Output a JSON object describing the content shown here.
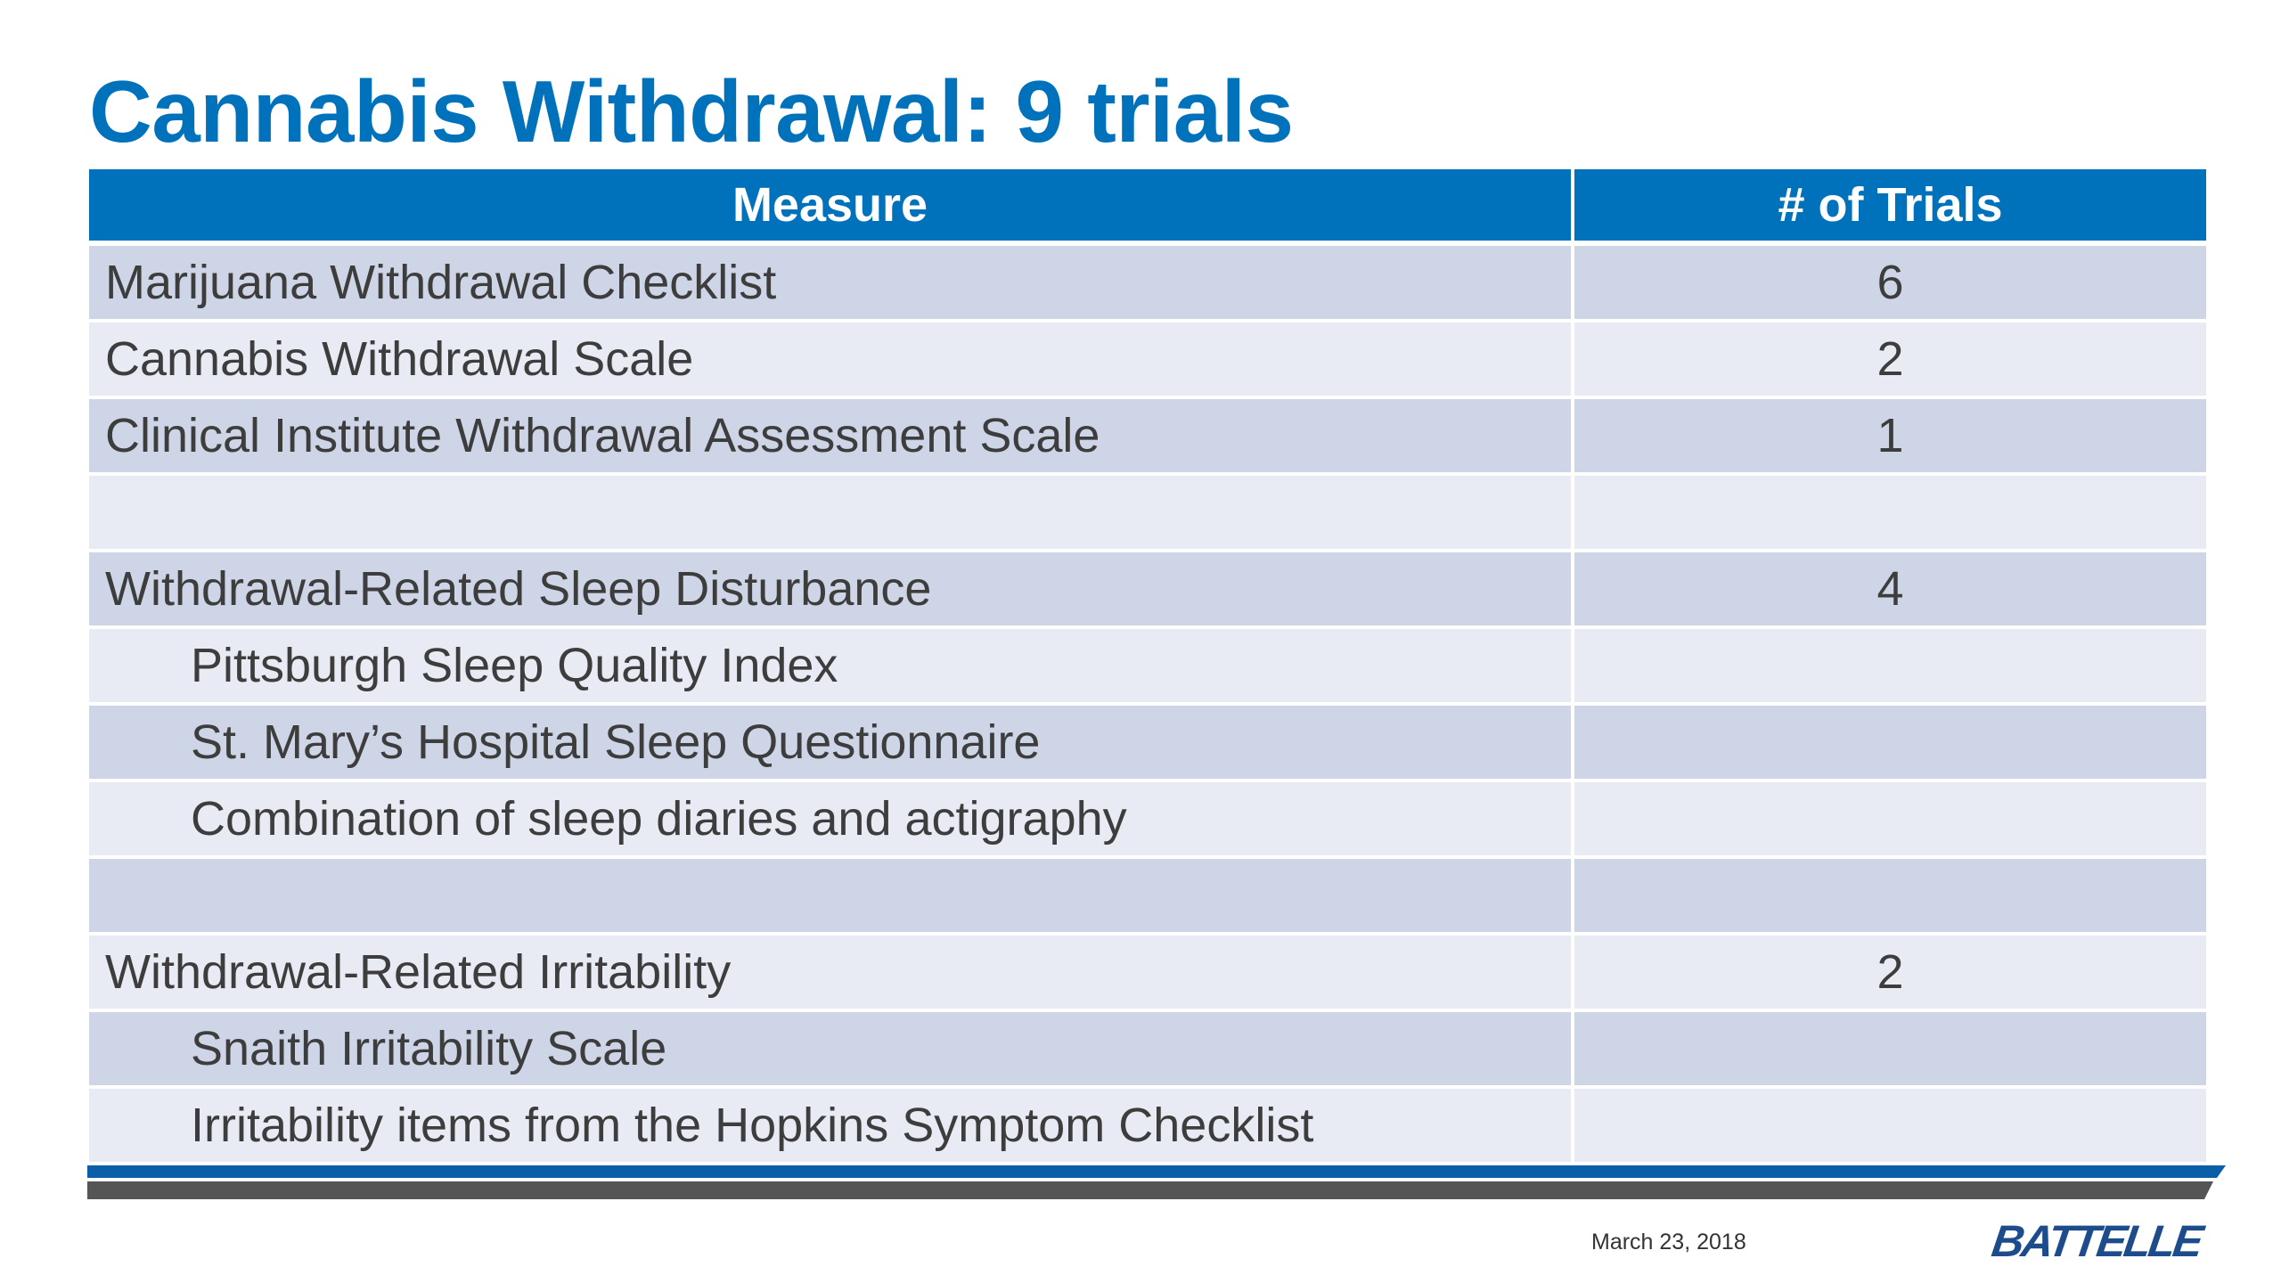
{
  "slide": {
    "title": "Cannabis Withdrawal: 9 trials"
  },
  "table": {
    "headers": {
      "measure": "Measure",
      "trials": "# of Trials"
    },
    "rows": [
      {
        "measure": "Marijuana Withdrawal Checklist",
        "trials": "6"
      },
      {
        "measure": "Cannabis Withdrawal Scale",
        "trials": "2"
      },
      {
        "measure": "Clinical Institute Withdrawal Assessment Scale",
        "trials": "1"
      },
      {
        "measure": "",
        "trials": ""
      },
      {
        "measure": "Withdrawal-Related Sleep Disturbance",
        "trials": "4"
      },
      {
        "measure": "Pittsburgh Sleep Quality Index",
        "trials": ""
      },
      {
        "measure": "St. Mary’s Hospital Sleep Questionnaire",
        "trials": ""
      },
      {
        "measure": "Combination of sleep diaries and actigraphy",
        "trials": ""
      },
      {
        "measure": "",
        "trials": ""
      },
      {
        "measure": "Withdrawal-Related Irritability",
        "trials": "2"
      },
      {
        "measure": "Snaith Irritability Scale",
        "trials": ""
      },
      {
        "measure": "Irritability items from the Hopkins Symptom Checklist",
        "trials": ""
      }
    ]
  },
  "footer": {
    "date": "March 23, 2018",
    "logo_text": "BATTELLE"
  },
  "colors": {
    "title_blue": "#0072bc",
    "header_blue": "#0072bc",
    "row_dark": "#cdd5e6",
    "row_light": "#e8ebf4",
    "footer_bar_blue": "#0a5fa8",
    "footer_bar_gray": "#555555",
    "logo_navy": "#1c4c8c"
  }
}
